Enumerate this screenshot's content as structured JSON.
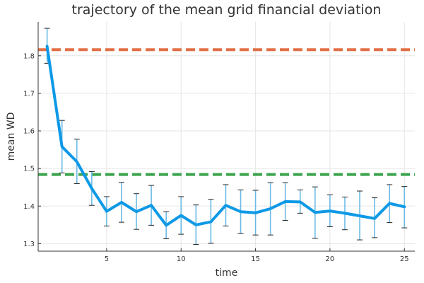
{
  "chart_data": {
    "type": "line",
    "title": "trajectory of the mean grid financial deviation",
    "xlabel": "time",
    "ylabel": "mean WD",
    "xlim": [
      0.4,
      25.7
    ],
    "ylim": [
      1.28,
      1.89
    ],
    "xticks": [
      5,
      10,
      15,
      20,
      25
    ],
    "yticks": [
      1.3,
      1.4,
      1.5,
      1.6,
      1.7,
      1.8
    ],
    "grid": true,
    "legend": "none",
    "series": [
      {
        "color": "#0d99e6",
        "x": [
          1,
          2,
          3,
          4,
          5,
          6,
          7,
          8,
          9,
          10,
          11,
          12,
          13,
          14,
          15,
          16,
          17,
          18,
          19,
          20,
          21,
          22,
          23,
          24,
          25
        ],
        "values": [
          1.825,
          1.558,
          1.518,
          1.447,
          1.386,
          1.41,
          1.385,
          1.402,
          1.349,
          1.375,
          1.35,
          1.358,
          1.402,
          1.385,
          1.382,
          1.393,
          1.412,
          1.411,
          1.383,
          1.387,
          1.381,
          1.374,
          1.367,
          1.407,
          1.398
        ],
        "err_low": [
          1.78,
          1.488,
          1.46,
          1.402,
          1.347,
          1.357,
          1.338,
          1.349,
          1.313,
          1.325,
          1.298,
          1.301,
          1.347,
          1.327,
          1.323,
          1.323,
          1.362,
          1.381,
          1.314,
          1.345,
          1.337,
          1.31,
          1.316,
          1.356,
          1.342
        ],
        "err_high": [
          1.873,
          1.628,
          1.578,
          1.492,
          1.425,
          1.463,
          1.433,
          1.455,
          1.385,
          1.425,
          1.403,
          1.418,
          1.457,
          1.443,
          1.442,
          1.462,
          1.462,
          1.443,
          1.451,
          1.43,
          1.424,
          1.44,
          1.422,
          1.457,
          1.452
        ]
      }
    ],
    "reference_lines": [
      {
        "y": 1.816,
        "color": "#e26f46",
        "style": "dashed"
      },
      {
        "y": 1.484,
        "color": "#3da44d",
        "style": "dashed"
      }
    ],
    "error_bar_color": "#6cbbe6"
  }
}
